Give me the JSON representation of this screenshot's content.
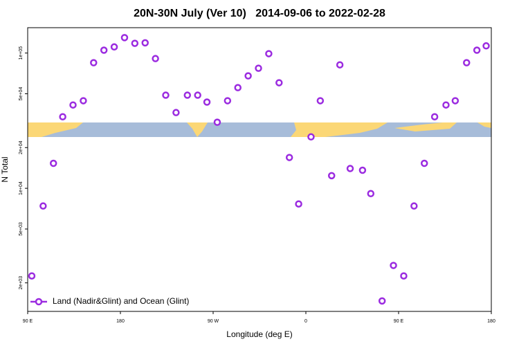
{
  "chart_data": {
    "type": "scatter",
    "title": "20N-30N July (Ver 10)   2014-09-06 to 2022-02-28",
    "x_label": "Longitude (deg E)",
    "y_label": "N Total",
    "yscale": "log",
    "xlim": [
      90,
      540
    ],
    "ylim": [
      1230,
      154000
    ],
    "xticks": [
      {
        "value": 90,
        "label": "90 E"
      },
      180,
      {
        "value": 270,
        "label": "90 W"
      },
      {
        "value": 360,
        "label": "0"
      },
      {
        "value": 450,
        "label": "90 E"
      },
      {
        "value": 540,
        "label": "180"
      }
    ],
    "yticks": [
      {
        "value": 2000,
        "label": "2e+03"
      },
      {
        "value": 5000,
        "label": "5e+03"
      },
      {
        "value": 10000,
        "label": "1e+04"
      },
      {
        "value": 20000,
        "label": "2e+04"
      },
      {
        "value": 50000,
        "label": "5e+04"
      },
      {
        "value": 100000,
        "label": "1e+05"
      }
    ],
    "legend": "bottom-left",
    "series": [
      {
        "name": "Land (Nadir&Glint) and Ocean (Glint)",
        "color": "#9b2be0",
        "x": [
          94,
          105,
          115,
          124,
          134,
          144,
          154,
          164,
          174,
          184,
          194,
          204,
          214,
          224,
          234,
          245,
          255,
          264,
          274,
          284,
          294,
          304,
          314,
          324,
          334,
          344,
          353,
          365,
          374,
          385,
          393,
          403,
          415,
          423,
          434,
          445,
          455,
          465,
          475,
          485,
          496,
          505,
          516,
          526,
          535
        ],
        "values": [
          2250,
          7400,
          15300,
          33800,
          41300,
          44400,
          84800,
          105000,
          111000,
          130000,
          118000,
          119000,
          91000,
          48800,
          36300,
          48800,
          48800,
          43400,
          30800,
          44400,
          55500,
          67800,
          77200,
          98900,
          60300,
          16900,
          7660,
          24000,
          44400,
          12400,
          81800,
          14000,
          13600,
          9140,
          1470,
          2690,
          2250,
          7400,
          15300,
          33800,
          41300,
          44400,
          84800,
          105000,
          113000
        ]
      }
    ]
  }
}
